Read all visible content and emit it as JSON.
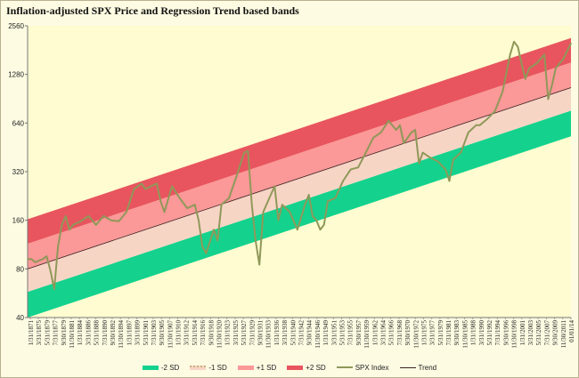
{
  "chart_data": {
    "type": "area",
    "title": "Inflation-adjusted  SPX Price and Regression Trend based bands",
    "xlabel": "",
    "ylabel": "",
    "y_scale": "log2",
    "ylim": [
      40,
      2560
    ],
    "y_ticks": [
      40,
      80,
      160,
      320,
      640,
      1280,
      2560
    ],
    "x_range": [
      "1871-01",
      "2014-01"
    ],
    "x_tick_labels": [
      "1/31/1871",
      "3/31/1875",
      "5/31/1879",
      "7/31/1877",
      "9/30/1879",
      "11/30/1881",
      "1/31/1884",
      "3/31/1886",
      "5/31/1888",
      "7/31/1890",
      "9/30/1892",
      "11/30/1894",
      "1/31/1897",
      "3/31/1899",
      "5/31/1901",
      "7/31/1903",
      "9/30/1905",
      "11/30/1907",
      "1/31/1910",
      "3/31/1912",
      "5/31/1914",
      "7/31/1916",
      "9/30/1918",
      "11/30/1920",
      "1/31/1923",
      "3/31/1925",
      "5/31/1927",
      "7/31/1929",
      "9/30/1931",
      "11/30/1933",
      "1/31/1936",
      "3/31/1938",
      "5/31/1940",
      "7/31/1942",
      "9/30/1944",
      "11/30/1946",
      "1/31/1949",
      "3/31/1951",
      "5/31/1953",
      "7/31/1955",
      "9/30/1957",
      "11/30/1959",
      "1/31/1962",
      "3/31/1964",
      "5/31/1966",
      "7/31/1968",
      "9/30/1970",
      "11/30/1972",
      "1/31/1975",
      "3/31/1977",
      "5/31/1979",
      "7/31/1981",
      "9/30/1983",
      "11/30/1985",
      "1/31/1988",
      "3/31/1990",
      "5/31/1992",
      "7/31/1994",
      "9/30/1996",
      "11/30/1998",
      "1/31/2001",
      "3/31/2003",
      "5/31/2005",
      "7/31/2007",
      "9/30/2009",
      "11/30/2011",
      "01/01/14"
    ],
    "trend": {
      "start": 80,
      "end": 1060
    },
    "band_multipliers": {
      "minus2sd": 0.5,
      "minus1sd": 0.72,
      "plus1sd": 1.43,
      "plus2sd": 2.03
    },
    "series": [
      {
        "name": "SPX Index",
        "x": [
          1871,
          1872,
          1873,
          1874,
          1875,
          1876,
          1877,
          1878,
          1879,
          1880,
          1881,
          1882,
          1883,
          1885,
          1887,
          1889,
          1891,
          1893,
          1895,
          1897,
          1899,
          1901,
          1902,
          1905,
          1906,
          1907,
          1909,
          1911,
          1913,
          1915,
          1916,
          1917,
          1918,
          1920,
          1921,
          1922,
          1924,
          1926,
          1928,
          1929,
          1930,
          1931,
          1932,
          1933,
          1935,
          1936,
          1937,
          1938,
          1940,
          1942,
          1944,
          1945,
          1946,
          1947,
          1948,
          1949,
          1950,
          1952,
          1954,
          1956,
          1958,
          1960,
          1962,
          1964,
          1966,
          1968,
          1969,
          1970,
          1972,
          1973,
          1974,
          1975,
          1977,
          1979,
          1981,
          1982,
          1983,
          1985,
          1987,
          1989,
          1990,
          1992,
          1994,
          1996,
          1998,
          1999,
          2000,
          2001,
          2002,
          2003,
          2005,
          2007,
          2008,
          2009,
          2010,
          2012,
          2014
        ],
        "values": [
          92,
          92,
          88,
          90,
          92,
          96,
          78,
          60,
          110,
          150,
          170,
          140,
          150,
          158,
          170,
          150,
          170,
          160,
          158,
          180,
          250,
          270,
          250,
          270,
          210,
          180,
          260,
          220,
          190,
          200,
          160,
          110,
          100,
          140,
          120,
          200,
          220,
          300,
          420,
          430,
          200,
          120,
          85,
          180,
          230,
          260,
          160,
          200,
          180,
          140,
          200,
          230,
          170,
          160,
          140,
          150,
          210,
          220,
          280,
          330,
          340,
          420,
          520,
          560,
          660,
          580,
          620,
          480,
          560,
          580,
          360,
          420,
          390,
          370,
          330,
          280,
          380,
          420,
          560,
          620,
          620,
          680,
          760,
          1000,
          1700,
          2040,
          1900,
          1500,
          1200,
          1400,
          1500,
          1700,
          900,
          1100,
          1400,
          1600,
          2000
        ]
      },
      {
        "name": "Trend"
      }
    ],
    "legend": [
      "-2 SD",
      "-1 SD",
      "+1 SD",
      "+2 SD",
      "SPX Index",
      "Trend"
    ],
    "legend_position": "bottom",
    "grid": false,
    "colors": {
      "background": "#fdfbe2",
      "minus2sd": "#14d28e",
      "minus1sd": "#f7d5c5",
      "plus1sd": "#fb9898",
      "plus2sd": "#e8555e",
      "spx": "#8f9859",
      "trend": "#3a2020"
    }
  }
}
